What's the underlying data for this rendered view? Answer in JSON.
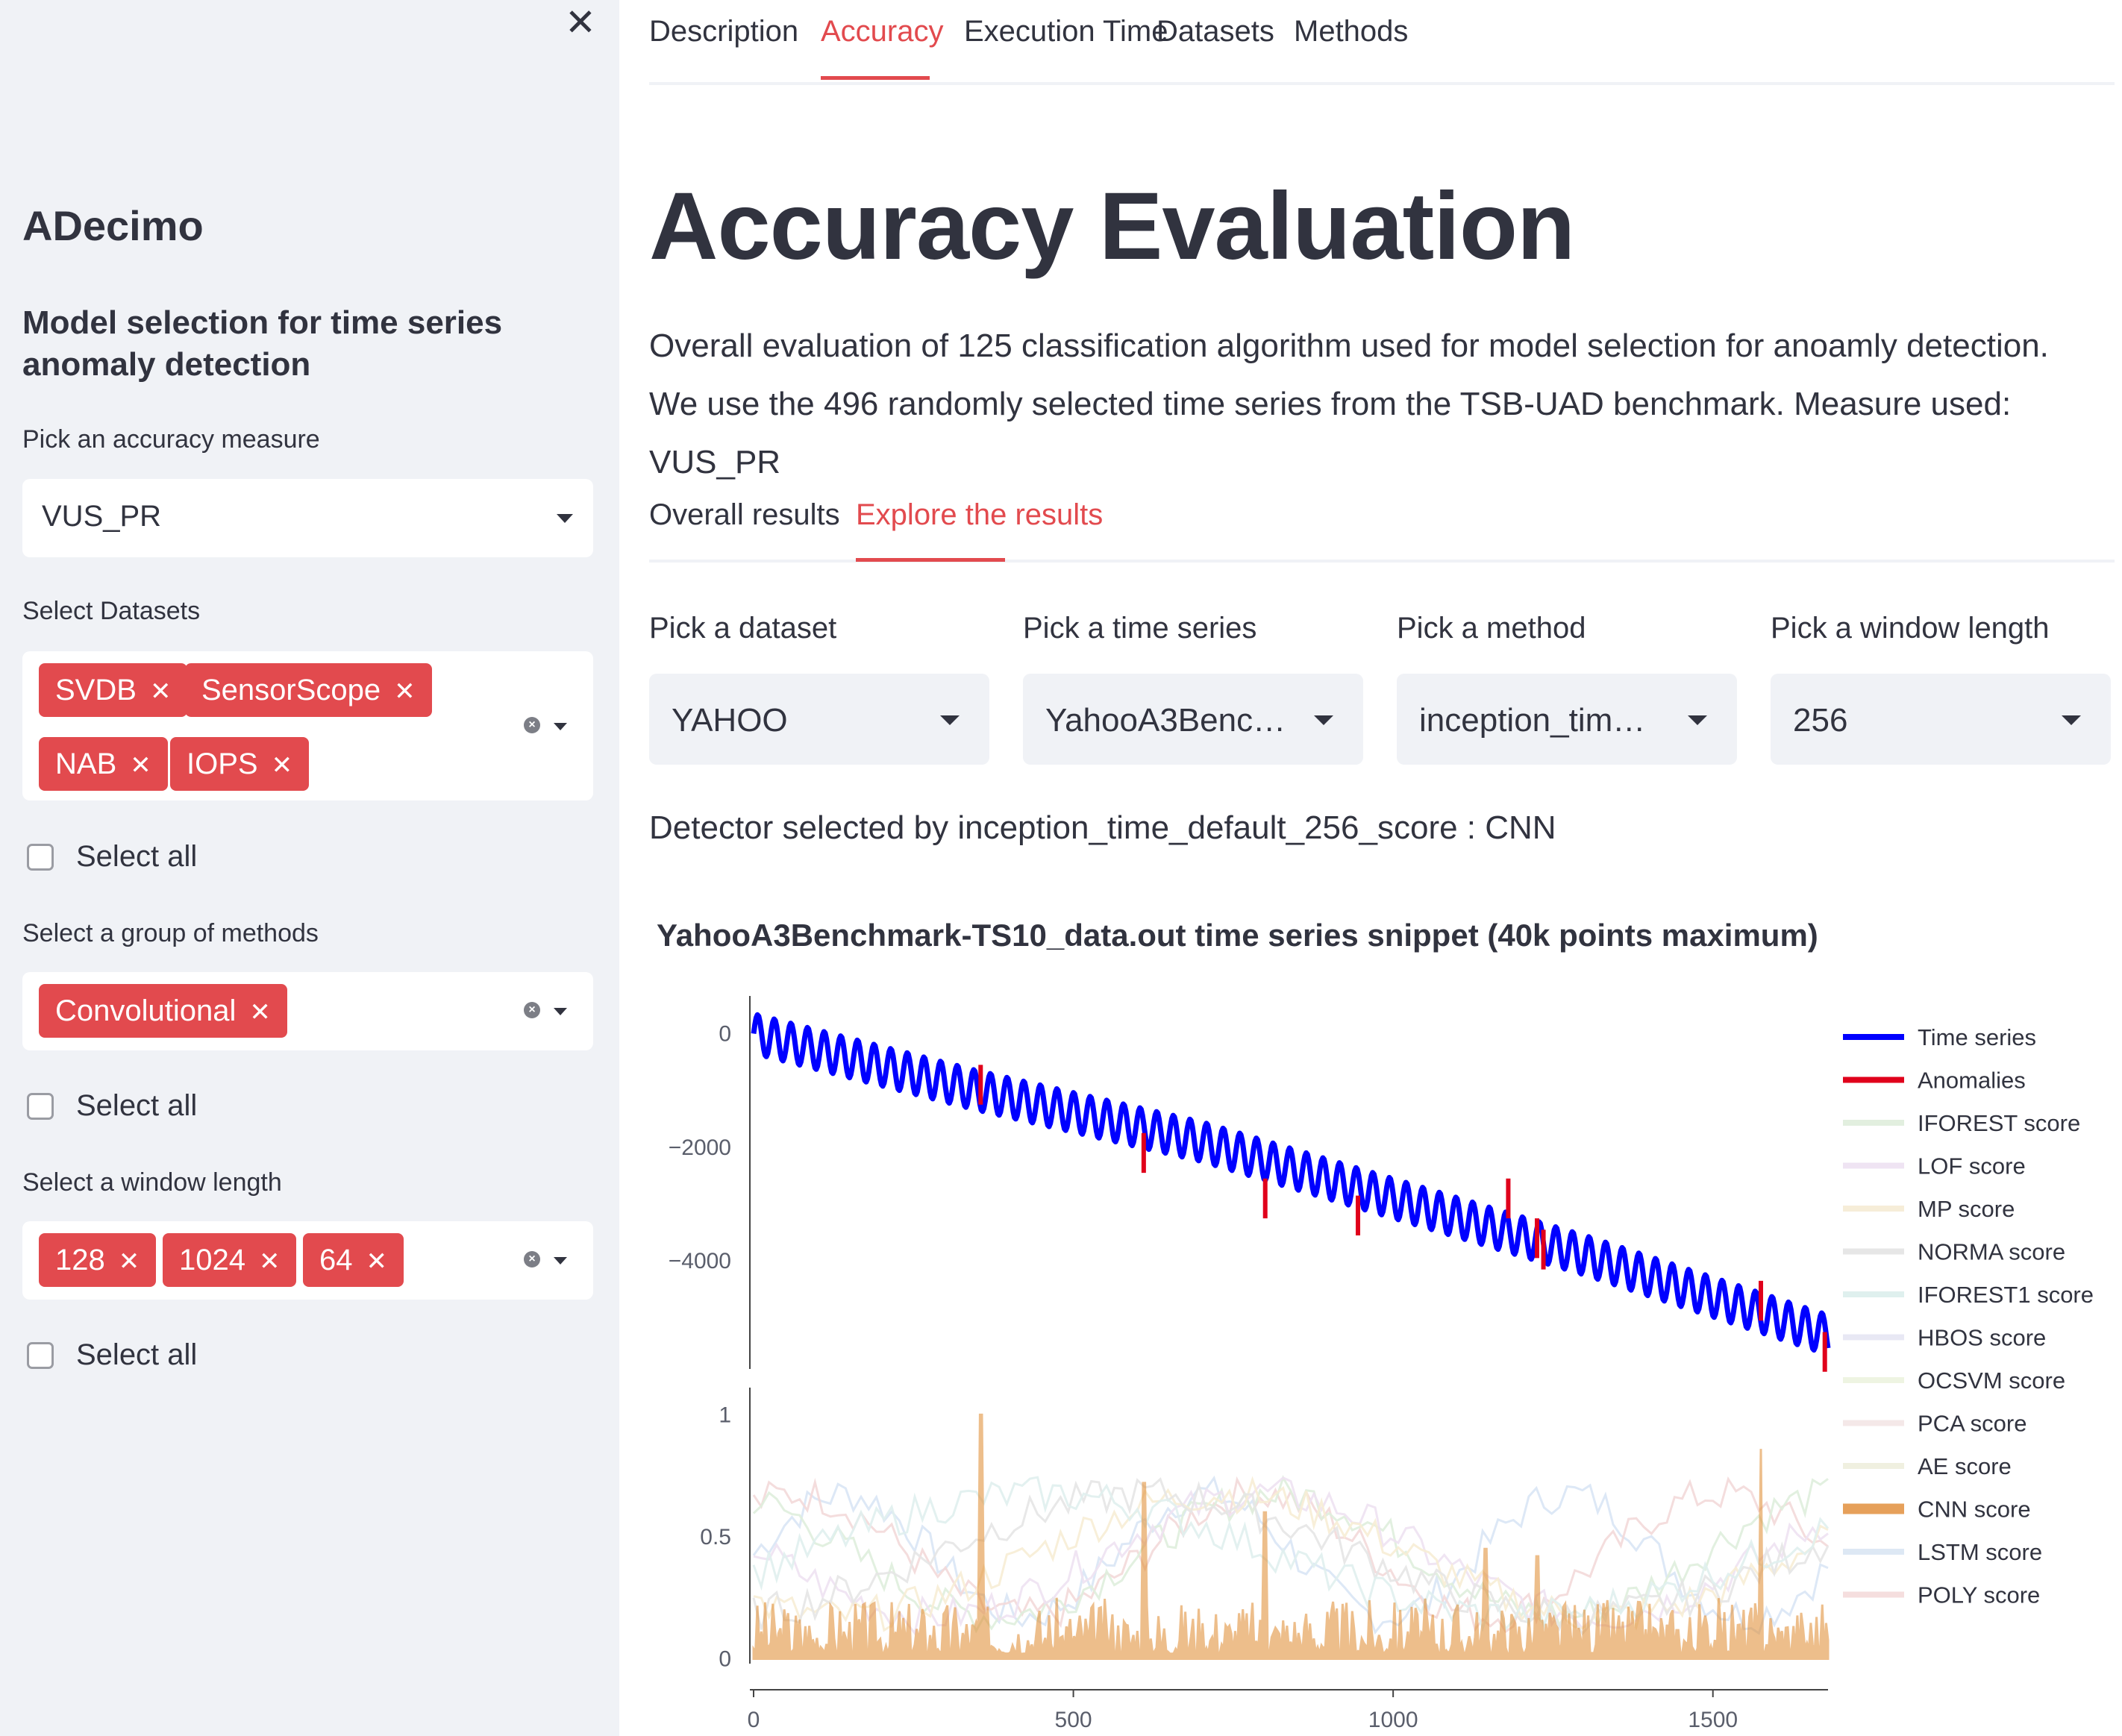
{
  "sidebar": {
    "close_label": "✕",
    "title": "ADecimo",
    "subtitle": "Model selection for time series anomaly detection",
    "measure_label": "Pick an accuracy measure",
    "measure_value": "VUS_PR",
    "datasets_label": "Select Datasets",
    "datasets": [
      "SVDB",
      "SensorScope",
      "NAB",
      "IOPS"
    ],
    "select_all": "Select all",
    "methods_label": "Select a group of methods",
    "methods": [
      "Convolutional"
    ],
    "window_label": "Select a window length",
    "windows": [
      "128",
      "1024",
      "64"
    ],
    "tag_close": "✕",
    "clear_icon": "×"
  },
  "nav": {
    "tabs": [
      "Description",
      "Accuracy",
      "Execution Time",
      "Datasets",
      "Methods"
    ],
    "active": "Accuracy"
  },
  "main": {
    "title": "Accuracy Evaluation",
    "description": "Overall evaluation of 125 classification algorithm used for model selection for anoamly detection. We use the 496 randomly selected time series from the TSB-UAD benchmark. Measure used: VUS_PR",
    "subtabs": [
      "Overall results",
      "Explore the results"
    ],
    "active_subtab": "Explore the results",
    "pickers": [
      {
        "label": "Pick a dataset",
        "value": "YAHOO"
      },
      {
        "label": "Pick a time series",
        "value": "YahooA3Benc…"
      },
      {
        "label": "Pick a method",
        "value": "inception_tim…"
      },
      {
        "label": "Pick a window length",
        "value": "256"
      }
    ],
    "detector_text": "Detector selected by inception_time_default_256_score : CNN"
  },
  "colors": {
    "accent": "#e24a4e",
    "time_series": "#0000ff",
    "anomalies": "#e0001b",
    "cnn": "#e08a2e"
  },
  "chart_data": {
    "type": "line",
    "title": "YahooA3Benchmark-TS10_data.out time series snippet (40k points maximum)",
    "x_ticks": [
      "0",
      "500",
      "1000",
      "1500"
    ],
    "xlim": [
      0,
      1680
    ],
    "top_panel": {
      "y_ticks": [
        "0",
        "−2000",
        "−4000"
      ],
      "ylim": [
        -5900,
        400
      ],
      "series": [
        {
          "name": "Time series",
          "trend": [
            [
              0,
              0
            ],
            [
              350,
              -1000
            ],
            [
              700,
              -1900
            ],
            [
              1000,
              -2900
            ],
            [
              1300,
              -3900
            ],
            [
              1680,
              -5300
            ]
          ],
          "oscillation_amplitude": 350,
          "oscillation_period": 26
        },
        {
          "name": "Anomalies",
          "points": [
            [
              355,
              -900
            ],
            [
              610,
              -2100
            ],
            [
              800,
              -2900
            ],
            [
              945,
              -3200
            ],
            [
              1180,
              -2900
            ],
            [
              1225,
              -3600
            ],
            [
              1235,
              -3800
            ],
            [
              1575,
              -4700
            ],
            [
              1675,
              -5600
            ]
          ]
        }
      ]
    },
    "bottom_panel": {
      "y_ticks": [
        "1",
        "0.5",
        "0"
      ],
      "ylim": [
        -0.02,
        1.05
      ],
      "highlighted_series": "CNN score",
      "cnn_spikes": [
        [
          355,
          1.0
        ],
        [
          610,
          0.72
        ],
        [
          800,
          0.6
        ],
        [
          1145,
          0.45
        ],
        [
          1225,
          0.42
        ],
        [
          1575,
          0.86
        ]
      ],
      "cnn_baseline_range": [
        0.02,
        0.25
      ]
    },
    "legend": [
      "Time series",
      "Anomalies",
      "IFOREST score",
      "LOF score",
      "MP score",
      "NORMA score",
      "IFOREST1 score",
      "HBOS score",
      "OCSVM score",
      "PCA score",
      "AE score",
      "CNN score",
      "LSTM score",
      "POLY score"
    ],
    "legend_placement": "right",
    "grid": false
  }
}
